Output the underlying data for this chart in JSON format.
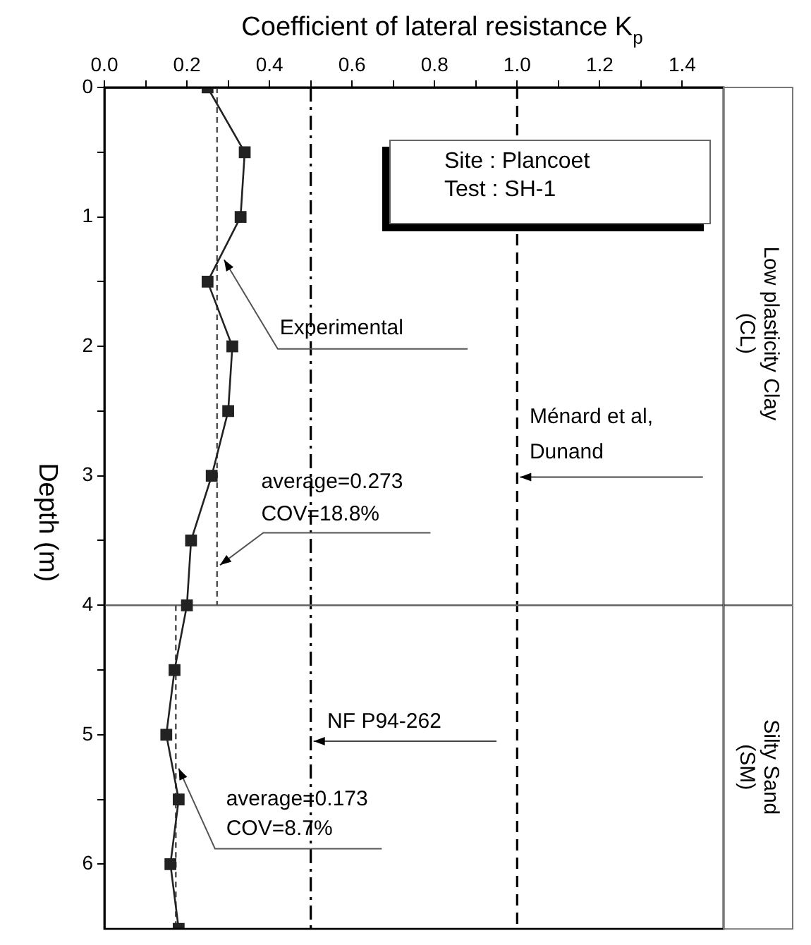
{
  "chart_data": {
    "type": "line",
    "xlabel": "Coefficient of lateral resistance K$_{p}$",
    "ylabel": "Depth (m)",
    "xlim": [
      0,
      1.5
    ],
    "xticks": [
      {
        "value": 0,
        "label": "0.0"
      },
      {
        "value": 0.1,
        "label": null
      },
      {
        "value": 0.2,
        "label": "0.2"
      },
      {
        "value": 0.3,
        "label": null
      },
      {
        "value": 0.4,
        "label": "0.4"
      },
      {
        "value": 0.5,
        "label": null
      },
      {
        "value": 0.6,
        "label": "0.6"
      },
      {
        "value": 0.7,
        "label": null
      },
      {
        "value": 0.8,
        "label": "0.8"
      },
      {
        "value": 0.9,
        "label": null
      },
      {
        "value": 1,
        "label": "1.0"
      },
      {
        "value": 1.1,
        "label": null
      },
      {
        "value": 1.2,
        "label": "1.2"
      },
      {
        "value": 1.3,
        "label": null
      },
      {
        "value": 1.4,
        "label": "1.4"
      }
    ],
    "ylim": [
      6.5,
      0
    ],
    "yticks": [
      0,
      {
        "value": 0.5,
        "label": null
      },
      1,
      {
        "value": 1.5,
        "label": null
      },
      2,
      {
        "value": 2.5,
        "label": null
      },
      3,
      {
        "value": 3.5,
        "label": null
      },
      4,
      {
        "value": 4.5,
        "label": null
      },
      5,
      {
        "value": 5.5,
        "label": null
      },
      6
    ],
    "series": [
      {
        "color": "#222222",
        "marker": "square",
        "line_style": "solid",
        "x": [
          0.25,
          0.34,
          0.33,
          0.25,
          0.31,
          0.3,
          0.26,
          0.21,
          0.2,
          0.17,
          0.15,
          0.18,
          0.16,
          0.18
        ],
        "values": [
          0,
          0.5,
          1,
          1.5,
          2,
          2.5,
          3,
          3.5,
          4,
          4.5,
          5,
          5.5,
          6,
          6.5
        ]
      },
      {
        "color": "#555555",
        "marker": "none",
        "line_style": "dashed",
        "x": [
          0.273,
          0.273
        ],
        "values": [
          0,
          4
        ]
      },
      {
        "color": "#555555",
        "marker": "none",
        "line_style": "dashed",
        "x": [
          0.173,
          0.173
        ],
        "values": [
          4,
          6.5
        ]
      }
    ],
    "ref_lines": [
      {
        "axis": "x",
        "value": 0.5,
        "label": "NF P94-262",
        "line_style": "dashdot",
        "color": "#000000"
      },
      {
        "axis": "x",
        "value": 1,
        "label": "Ménard et al,\nDunand",
        "line_style": "dashed",
        "color": "#000000"
      },
      {
        "axis": "y",
        "value": 4,
        "line_style": "solid",
        "color": "#666666"
      }
    ],
    "annotations": [
      {
        "text": "Experimental",
        "x": 0.29,
        "y": 1.33
      },
      {
        "text": "average=0.273\nCOV=18.8%",
        "x": 0.28,
        "y": 3.69
      },
      {
        "text": "average=0.173\nCOV=8.7%",
        "x": 0.18,
        "y": 5.26
      },
      "Site : Plancoet\nTest : SH-1",
      "Low plasticity Clay\n(CL)",
      "Silty Sand\n(SM)"
    ],
    "legend": false,
    "grid": false
  }
}
